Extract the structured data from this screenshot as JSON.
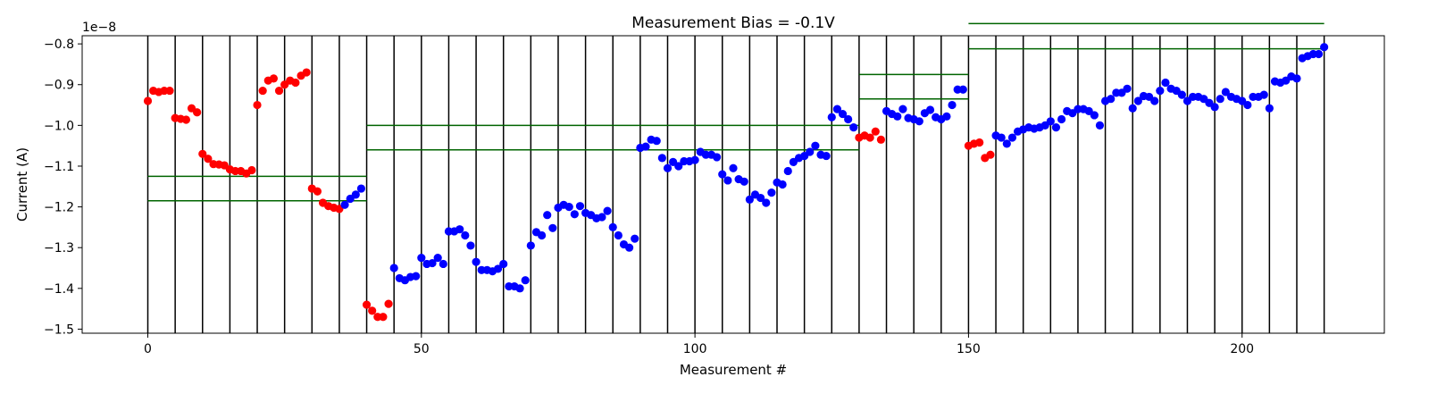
{
  "chart_data": {
    "type": "scatter",
    "title": "Measurement Bias = -0.1V",
    "xlabel": "Measurement #",
    "ylabel": "Current (A)",
    "offset_text": "1e−8",
    "xlim": [
      -12,
      226
    ],
    "ylim": [
      -15.1,
      -7.8
    ],
    "x_ticks": [
      0,
      50,
      100,
      150,
      200
    ],
    "y_ticks": [
      -15,
      -14,
      -13,
      -12,
      -11,
      -10,
      -9,
      -8
    ],
    "y_tick_labels": [
      "−1.5",
      "−1.4",
      "−1.3",
      "−1.2",
      "−1.1",
      "−1.0",
      "−0.9",
      "−0.8"
    ],
    "grid": false,
    "legend": "none",
    "colors": {
      "red": "#ff0000",
      "blue": "#0000ff",
      "vline": "#000000",
      "hline": "#006400"
    },
    "vlines": [
      0,
      5,
      10,
      15,
      20,
      25,
      30,
      35,
      40,
      45,
      50,
      55,
      60,
      65,
      70,
      75,
      80,
      85,
      90,
      95,
      100,
      105,
      110,
      115,
      120,
      125,
      130,
      135,
      140,
      145,
      150,
      155,
      160,
      165,
      170,
      175,
      180,
      185,
      190,
      195,
      200,
      205,
      210,
      215
    ],
    "hlines": [
      {
        "x1": 0,
        "x2": 40,
        "y": -11.25
      },
      {
        "x1": 0,
        "x2": 40,
        "y": -11.85
      },
      {
        "x1": 40,
        "x2": 130,
        "y": -10.0
      },
      {
        "x1": 40,
        "x2": 130,
        "y": -10.6
      },
      {
        "x1": 130,
        "x2": 150,
        "y": -8.75
      },
      {
        "x1": 130,
        "x2": 150,
        "y": -9.35
      },
      {
        "x1": 150,
        "x2": 215,
        "y": -7.5
      },
      {
        "x1": 150,
        "x2": 215,
        "y": -8.12
      }
    ],
    "series": [
      {
        "color": "red",
        "x": [
          0,
          1,
          2,
          3,
          4,
          5,
          6,
          7,
          8,
          9,
          10,
          11,
          12,
          13,
          14,
          15,
          16,
          17,
          18,
          19,
          20,
          21,
          22,
          23,
          24,
          25,
          26,
          27,
          28,
          29,
          30,
          31,
          32,
          33,
          34,
          35,
          40,
          41,
          42,
          43,
          44,
          130,
          131,
          132,
          133,
          134,
          150,
          151,
          152,
          153,
          154
        ],
        "y": [
          -9.4,
          -9.15,
          -9.18,
          -9.15,
          -9.15,
          -9.82,
          -9.84,
          -9.86,
          -9.58,
          -9.68,
          -10.7,
          -10.82,
          -10.95,
          -10.96,
          -10.98,
          -11.08,
          -11.12,
          -11.12,
          -11.18,
          -11.1,
          -9.5,
          -9.15,
          -8.9,
          -8.85,
          -9.15,
          -9.0,
          -8.9,
          -8.95,
          -8.78,
          -8.7,
          -11.55,
          -11.62,
          -11.9,
          -11.98,
          -12.02,
          -12.05,
          -14.4,
          -14.55,
          -14.7,
          -14.7,
          -14.38,
          -10.3,
          -10.25,
          -10.3,
          -10.15,
          -10.35,
          -10.5,
          -10.45,
          -10.42,
          -10.8,
          -10.72
        ]
      },
      {
        "color": "blue",
        "x": [
          36,
          37,
          38,
          39,
          45,
          46,
          47,
          48,
          49,
          50,
          51,
          52,
          53,
          54,
          55,
          56,
          57,
          58,
          59,
          60,
          61,
          62,
          63,
          64,
          65,
          66,
          67,
          68,
          69,
          70,
          71,
          72,
          73,
          74,
          75,
          76,
          77,
          78,
          79,
          80,
          81,
          82,
          83,
          84,
          85,
          86,
          87,
          88,
          89,
          90,
          91,
          92,
          93,
          94,
          95,
          96,
          97,
          98,
          99,
          100,
          101,
          102,
          103,
          104,
          105,
          106,
          107,
          108,
          109,
          110,
          111,
          112,
          113,
          114,
          115,
          116,
          117,
          118,
          119,
          120,
          121,
          122,
          123,
          124,
          125,
          126,
          127,
          128,
          129,
          135,
          136,
          137,
          138,
          139,
          140,
          141,
          142,
          143,
          144,
          145,
          146,
          147,
          148,
          149,
          155,
          156,
          157,
          158,
          159,
          160,
          161,
          162,
          163,
          164,
          165,
          166,
          167,
          168,
          169,
          170,
          171,
          172,
          173,
          174,
          175,
          176,
          177,
          178,
          179,
          180,
          181,
          182,
          183,
          184,
          185,
          186,
          187,
          188,
          189,
          190,
          191,
          192,
          193,
          194,
          195,
          196,
          197,
          198,
          199,
          200,
          201,
          202,
          203,
          204,
          205,
          206,
          207,
          208,
          209,
          210,
          211,
          212,
          213,
          214,
          215
        ],
        "y": [
          -11.95,
          -11.8,
          -11.7,
          -11.55,
          -13.5,
          -13.75,
          -13.8,
          -13.72,
          -13.7,
          -13.25,
          -13.4,
          -13.38,
          -13.25,
          -13.4,
          -12.6,
          -12.6,
          -12.55,
          -12.7,
          -12.95,
          -13.35,
          -13.55,
          -13.55,
          -13.58,
          -13.52,
          -13.4,
          -13.95,
          -13.95,
          -14.0,
          -13.8,
          -12.95,
          -12.62,
          -12.7,
          -12.2,
          -12.52,
          -12.02,
          -11.95,
          -12.0,
          -12.18,
          -11.98,
          -12.15,
          -12.2,
          -12.28,
          -12.25,
          -12.1,
          -12.5,
          -12.7,
          -12.92,
          -13.0,
          -12.78,
          -10.55,
          -10.52,
          -10.35,
          -10.38,
          -10.8,
          -11.05,
          -10.9,
          -11.0,
          -10.88,
          -10.88,
          -10.85,
          -10.65,
          -10.72,
          -10.72,
          -10.78,
          -11.2,
          -11.35,
          -11.05,
          -11.32,
          -11.38,
          -11.82,
          -11.7,
          -11.78,
          -11.9,
          -11.65,
          -11.4,
          -11.45,
          -11.12,
          -10.9,
          -10.8,
          -10.75,
          -10.65,
          -10.5,
          -10.72,
          -10.75,
          -9.8,
          -9.6,
          -9.72,
          -9.85,
          -10.05,
          -9.65,
          -9.72,
          -9.78,
          -9.6,
          -9.82,
          -9.85,
          -9.9,
          -9.7,
          -9.62,
          -9.8,
          -9.85,
          -9.78,
          -9.5,
          -9.12,
          -9.12,
          -10.25,
          -10.3,
          -10.45,
          -10.3,
          -10.15,
          -10.1,
          -10.05,
          -10.08,
          -10.05,
          -10.0,
          -9.9,
          -10.05,
          -9.85,
          -9.65,
          -9.7,
          -9.6,
          -9.6,
          -9.65,
          -9.75,
          -10.0,
          -9.4,
          -9.35,
          -9.2,
          -9.2,
          -9.1,
          -9.58,
          -9.4,
          -9.28,
          -9.3,
          -9.4,
          -9.15,
          -8.95,
          -9.1,
          -9.15,
          -9.25,
          -9.4,
          -9.3,
          -9.3,
          -9.35,
          -9.45,
          -9.55,
          -9.35,
          -9.18,
          -9.3,
          -9.35,
          -9.4,
          -9.5,
          -9.3,
          -9.3,
          -9.25,
          -9.58,
          -8.92,
          -8.95,
          -8.9,
          -8.8,
          -8.85,
          -8.35,
          -8.3,
          -8.25,
          -8.25,
          -8.08
        ]
      }
    ]
  }
}
